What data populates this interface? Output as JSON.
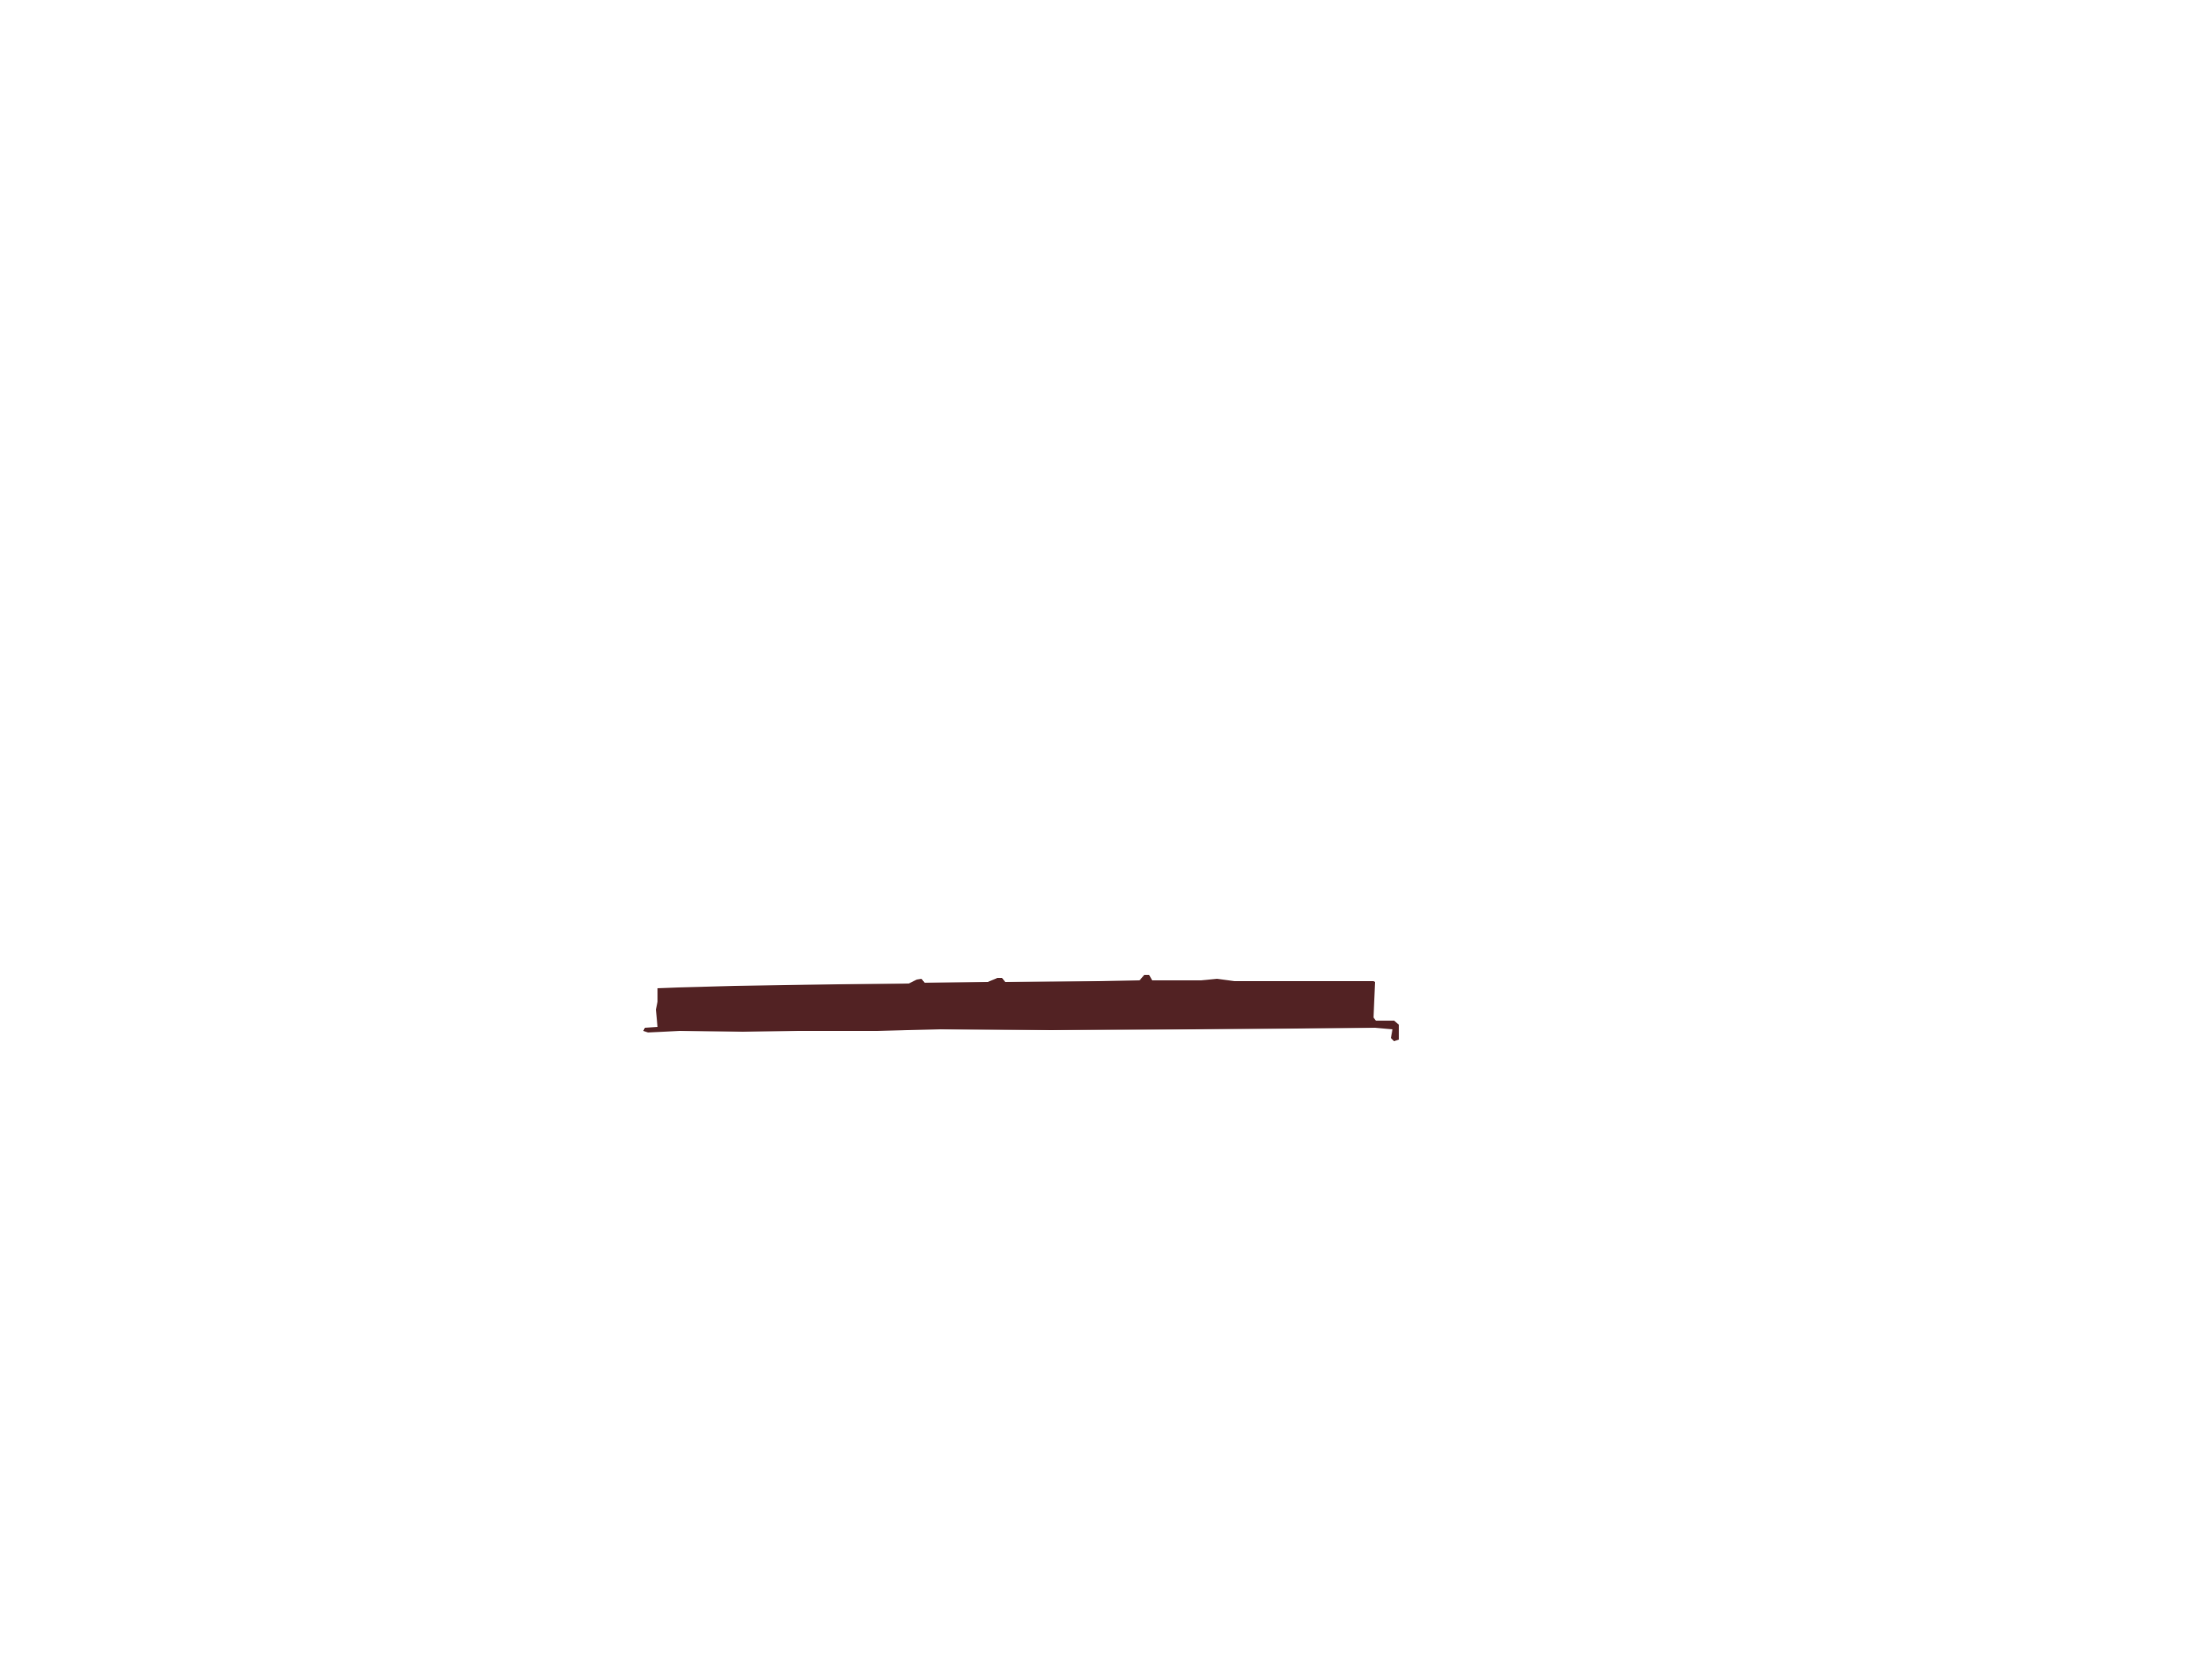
{
  "page": {
    "background_color": "#ffffff"
  },
  "redaction_mark": {
    "icon": "redaction-bar-icon",
    "fill_color": "#522223"
  }
}
